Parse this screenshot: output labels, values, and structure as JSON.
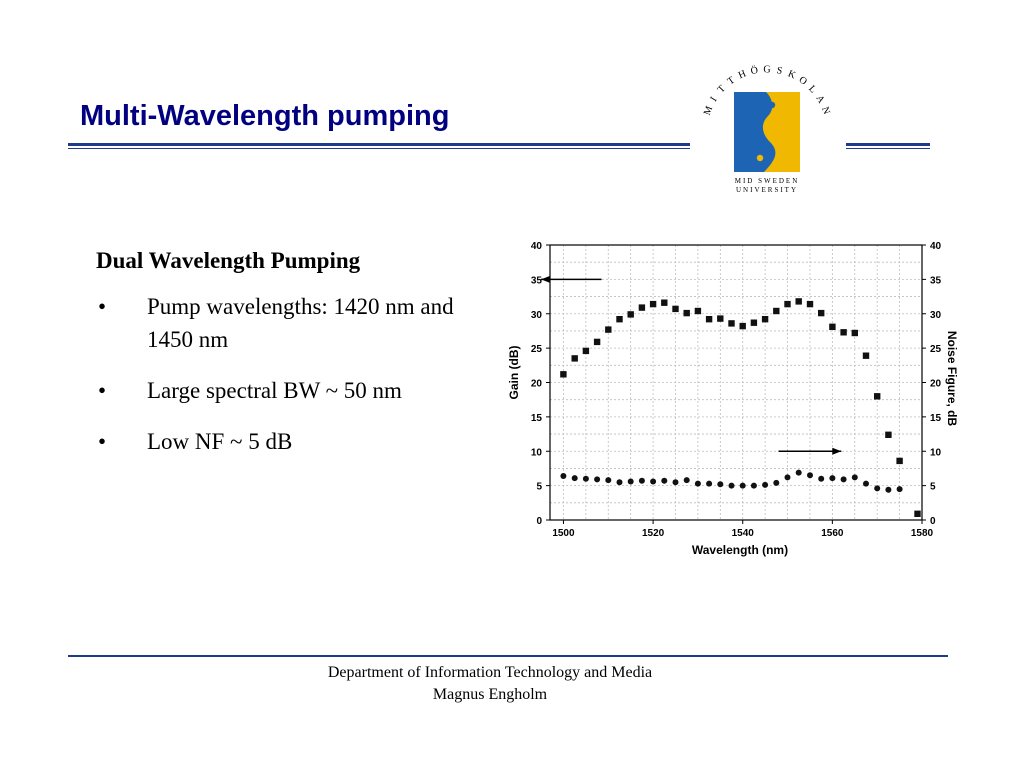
{
  "slide": {
    "title": "Multi-Wavelength pumping",
    "subheading": "Dual Wavelength Pumping",
    "bullets": [
      "Pump wavelengths: 1420 nm and 1450 nm",
      "Large spectral BW ~ 50 nm",
      "Low NF ~ 5 dB"
    ],
    "bullet_symbol": "•"
  },
  "logo": {
    "ring_text": "MITTHÖGSKOLAN",
    "subtitle_line1": "MID SWEDEN",
    "subtitle_line2": "UNIVERSITY",
    "colors": {
      "blue": "#1e64b4",
      "yellow": "#f0b800"
    }
  },
  "footer": {
    "line1": "Department of Information Technology and Media",
    "line2": "Magnus Engholm"
  },
  "colors": {
    "title": "#000080",
    "rule": "#1f3b8c"
  },
  "chart_data": {
    "type": "scatter",
    "xlabel": "Wavelength (nm)",
    "ylabel_left": "Gain (dB)",
    "ylabel_right": "Noise Figure, dB",
    "xlim": [
      1497,
      1580
    ],
    "ylim": [
      0,
      40
    ],
    "x_ticks": [
      1500,
      1520,
      1540,
      1560,
      1580
    ],
    "y_ticks": [
      0,
      5,
      10,
      15,
      20,
      25,
      30,
      35,
      40
    ],
    "grid": true,
    "series": [
      {
        "marker": "square",
        "axis": "left",
        "points": [
          [
            1500,
            21.2
          ],
          [
            1502.5,
            23.5
          ],
          [
            1505,
            24.6
          ],
          [
            1507.5,
            25.9
          ],
          [
            1510,
            27.7
          ],
          [
            1512.5,
            29.2
          ],
          [
            1515,
            29.9
          ],
          [
            1517.5,
            30.9
          ],
          [
            1520,
            31.4
          ],
          [
            1522.5,
            31.6
          ],
          [
            1525,
            30.7
          ],
          [
            1527.5,
            30.1
          ],
          [
            1530,
            30.4
          ],
          [
            1532.5,
            29.2
          ],
          [
            1535,
            29.3
          ],
          [
            1537.5,
            28.6
          ],
          [
            1540,
            28.2
          ],
          [
            1542.5,
            28.7
          ],
          [
            1545,
            29.2
          ],
          [
            1547.5,
            30.4
          ],
          [
            1550,
            31.4
          ],
          [
            1552.5,
            31.8
          ],
          [
            1555,
            31.4
          ],
          [
            1557.5,
            30.1
          ],
          [
            1560,
            28.1
          ],
          [
            1562.5,
            27.3
          ],
          [
            1565,
            27.2
          ],
          [
            1567.5,
            23.9
          ],
          [
            1570,
            18.0
          ],
          [
            1572.5,
            12.4
          ],
          [
            1575,
            8.6
          ],
          [
            1579,
            0.9
          ]
        ]
      },
      {
        "marker": "circle",
        "axis": "right",
        "points": [
          [
            1500,
            6.4
          ],
          [
            1502.5,
            6.1
          ],
          [
            1505,
            6.0
          ],
          [
            1507.5,
            5.9
          ],
          [
            1510,
            5.8
          ],
          [
            1512.5,
            5.5
          ],
          [
            1515,
            5.6
          ],
          [
            1517.5,
            5.7
          ],
          [
            1520,
            5.6
          ],
          [
            1522.5,
            5.7
          ],
          [
            1525,
            5.5
          ],
          [
            1527.5,
            5.8
          ],
          [
            1530,
            5.3
          ],
          [
            1532.5,
            5.3
          ],
          [
            1535,
            5.2
          ],
          [
            1537.5,
            5.0
          ],
          [
            1540,
            5.0
          ],
          [
            1542.5,
            5.0
          ],
          [
            1545,
            5.1
          ],
          [
            1547.5,
            5.4
          ],
          [
            1550,
            6.2
          ],
          [
            1552.5,
            6.9
          ],
          [
            1555,
            6.5
          ],
          [
            1557.5,
            6.0
          ],
          [
            1560,
            6.1
          ],
          [
            1562.5,
            5.9
          ],
          [
            1565,
            6.2
          ],
          [
            1567.5,
            5.3
          ],
          [
            1570,
            4.6
          ],
          [
            1572.5,
            4.4
          ],
          [
            1575,
            4.5
          ]
        ]
      }
    ],
    "annotations": [
      {
        "type": "arrow",
        "direction": "left",
        "points_to": "left axis",
        "from": [
          1508.5,
          35
        ],
        "to": [
          1495,
          35
        ]
      },
      {
        "type": "arrow",
        "direction": "right",
        "points_to": "right axis",
        "from": [
          1548,
          10
        ],
        "to": [
          1562,
          10
        ]
      }
    ]
  }
}
